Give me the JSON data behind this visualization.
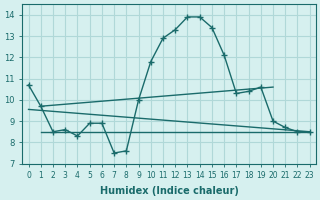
{
  "xlabel": "Humidex (Indice chaleur)",
  "bg_color": "#d6f0ef",
  "line_color": "#1a6b6b",
  "grid_color": "#b0d8d8",
  "xlim": [
    -0.5,
    23.5
  ],
  "ylim": [
    7,
    14.5
  ],
  "xticks": [
    0,
    1,
    2,
    3,
    4,
    5,
    6,
    7,
    8,
    9,
    10,
    11,
    12,
    13,
    14,
    15,
    16,
    17,
    18,
    19,
    20,
    21,
    22,
    23
  ],
  "yticks": [
    7,
    8,
    9,
    10,
    11,
    12,
    13,
    14
  ],
  "main_x": [
    0,
    1,
    2,
    3,
    4,
    5,
    6,
    7,
    8,
    9,
    10,
    11,
    12,
    13,
    14,
    15,
    16,
    17,
    18,
    19,
    20,
    21,
    22,
    23
  ],
  "main_y": [
    10.7,
    9.7,
    8.5,
    8.6,
    8.3,
    8.9,
    8.9,
    7.5,
    7.6,
    10.0,
    11.8,
    12.9,
    13.3,
    13.9,
    13.9,
    13.4,
    12.1,
    10.3,
    10.4,
    10.6,
    9.0,
    8.7,
    8.5,
    8.5
  ],
  "line2_x": [
    0,
    23
  ],
  "line2_y": [
    9.55,
    8.5
  ],
  "line3_x": [
    1,
    20
  ],
  "line3_y": [
    9.7,
    10.6
  ],
  "line4_x": [
    1,
    23
  ],
  "line4_y": [
    8.5,
    8.5
  ],
  "marker": "+",
  "markersize": 5,
  "linewidth": 1.0
}
